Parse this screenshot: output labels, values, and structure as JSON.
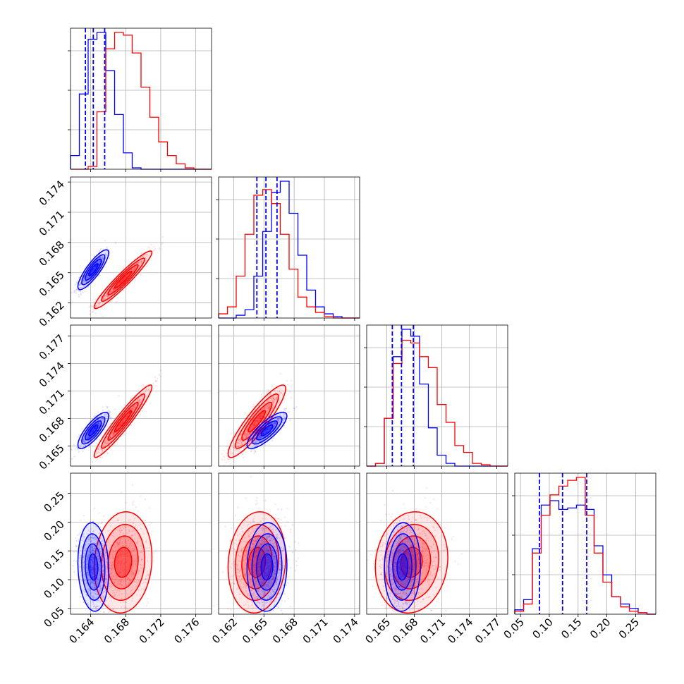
{
  "chart_data": {
    "type": "corner",
    "grid": true,
    "colors": {
      "series_a": "#0000ff",
      "series_b": "#ff0000"
    },
    "parameters": [
      {
        "range": [
          0.1617,
          0.1778
        ],
        "ticks": [
          0.164,
          0.168,
          0.172,
          0.176
        ],
        "tick_labels": [
          "0.164",
          "0.168",
          "0.172",
          "0.176"
        ]
      },
      {
        "range": [
          0.1605,
          0.1745
        ],
        "ticks": [
          0.162,
          0.165,
          0.168,
          0.171,
          0.174
        ],
        "tick_labels": [
          "0.162",
          "0.165",
          "0.168",
          "0.171",
          "0.174"
        ]
      },
      {
        "range": [
          0.1628,
          0.1782
        ],
        "ticks": [
          0.165,
          0.168,
          0.171,
          0.174,
          0.177
        ],
        "tick_labels": [
          "0.165",
          "0.168",
          "0.171",
          "0.174",
          "0.177"
        ]
      },
      {
        "range": [
          0.04,
          0.285
        ],
        "ticks": [
          0.05,
          0.1,
          0.15,
          0.2,
          0.25
        ],
        "tick_labels": [
          "0.05",
          "0.10",
          "0.15",
          "0.20",
          "0.25"
        ]
      }
    ],
    "series": [
      {
        "color": "#0000ff",
        "means": [
          0.1643,
          0.1653,
          0.1667,
          0.122
        ],
        "sigmas": [
          0.0008,
          0.0009,
          0.0009,
          0.035
        ],
        "quantiles": [
          [
            0.1634,
            0.1643,
            0.1656
          ],
          [
            0.1643,
            0.1652,
            0.1663
          ],
          [
            0.1656,
            0.1666,
            0.1679
          ],
          [
            0.083,
            0.123,
            0.165
          ]
        ],
        "correlations": {
          "1-0": 0.85,
          "2-0": 0.8,
          "3-0": -0.1,
          "2-1": 0.8,
          "3-1": 0.05,
          "3-2": 0.05
        },
        "histograms": [
          [
            0.1,
            0.55,
            0.95,
            1.0,
            0.72,
            0.4,
            0.12,
            0.01,
            0.0,
            0.0,
            0.0,
            0.0,
            0.0,
            0.0,
            0.0,
            0.0
          ],
          [
            0.0,
            0.0,
            0.02,
            0.06,
            0.3,
            0.62,
            0.9,
            0.98,
            0.75,
            0.45,
            0.2,
            0.08,
            0.03,
            0.01,
            0.0,
            0.0
          ],
          [
            0.0,
            0.02,
            0.35,
            0.8,
            1.0,
            0.95,
            0.6,
            0.28,
            0.08,
            0.02,
            0.0,
            0.0,
            0.0,
            0.0,
            0.0,
            0.0
          ],
          [
            0.03,
            0.1,
            0.45,
            0.75,
            0.78,
            0.72,
            0.73,
            0.75,
            0.72,
            0.47,
            0.27,
            0.12,
            0.07,
            0.04,
            0.01,
            0.0
          ]
        ]
      },
      {
        "color": "#ff0000",
        "means": [
          0.1677,
          0.1643,
          0.1677,
          0.13
        ],
        "sigmas": [
          0.0015,
          0.0013,
          0.0018,
          0.04
        ],
        "quantiles": [],
        "correlations": {
          "1-0": 0.95,
          "2-0": 0.95,
          "3-0": 0.1,
          "2-1": 0.9,
          "3-1": 0.1,
          "3-2": 0.1
        },
        "histograms": [
          [
            0.0,
            0.0,
            0.02,
            0.42,
            0.88,
            1.0,
            0.98,
            0.85,
            0.6,
            0.38,
            0.2,
            0.1,
            0.04,
            0.01,
            0.0,
            0.0
          ],
          [
            0.03,
            0.08,
            0.3,
            0.6,
            0.88,
            0.92,
            0.82,
            0.6,
            0.35,
            0.15,
            0.08,
            0.04,
            0.01,
            0.0,
            0.0,
            0.0
          ],
          [
            0.0,
            0.02,
            0.35,
            0.75,
            0.92,
            0.9,
            0.8,
            0.72,
            0.45,
            0.32,
            0.15,
            0.1,
            0.02,
            0.01,
            0.0,
            0.0
          ],
          [
            0.02,
            0.07,
            0.42,
            0.68,
            0.82,
            0.88,
            0.92,
            0.94,
            0.68,
            0.42,
            0.22,
            0.12,
            0.05,
            0.02,
            0.01,
            0.0
          ]
        ]
      }
    ]
  }
}
